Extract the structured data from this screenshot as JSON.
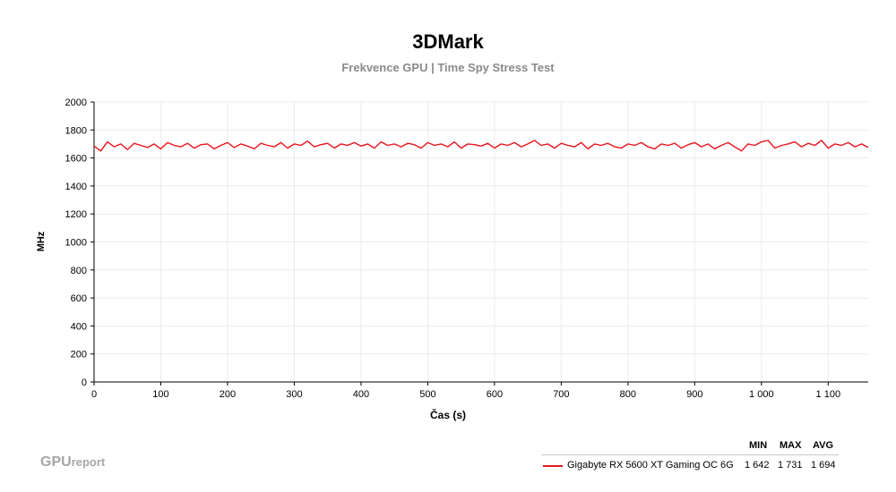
{
  "chart_data": {
    "type": "line",
    "title": "3DMark",
    "subtitle": "Frekvence GPU | Time Spy Stress Test",
    "xlabel": "Čas (s)",
    "ylabel": "MHz",
    "xlim": [
      0,
      1160
    ],
    "ylim": [
      0,
      2000
    ],
    "x_ticks": [
      0,
      100,
      200,
      300,
      400,
      500,
      600,
      700,
      800,
      900,
      1000,
      1100
    ],
    "x_tick_labels": [
      "0",
      "100",
      "200",
      "300",
      "400",
      "500",
      "600",
      "700",
      "800",
      "900",
      "1 000",
      "1 100"
    ],
    "y_ticks": [
      0,
      200,
      400,
      600,
      800,
      1000,
      1200,
      1400,
      1600,
      1800,
      2000
    ],
    "y_tick_labels": [
      "0",
      "200",
      "400",
      "600",
      "800",
      "1000",
      "1200",
      "1400",
      "1600",
      "1800",
      "2000"
    ],
    "grid": true,
    "legend_position": "bottom-right",
    "series": [
      {
        "name": "Gigabyte RX 5600 XT Gaming OC 6G",
        "color": "#e8141c",
        "x": [
          0,
          10,
          20,
          30,
          40,
          50,
          60,
          70,
          80,
          90,
          100,
          110,
          120,
          130,
          140,
          150,
          160,
          170,
          180,
          190,
          200,
          210,
          220,
          230,
          240,
          250,
          260,
          270,
          280,
          290,
          300,
          310,
          320,
          330,
          340,
          350,
          360,
          370,
          380,
          390,
          400,
          410,
          420,
          430,
          440,
          450,
          460,
          470,
          480,
          490,
          500,
          510,
          520,
          530,
          540,
          550,
          560,
          570,
          580,
          590,
          600,
          610,
          620,
          630,
          640,
          650,
          660,
          670,
          680,
          690,
          700,
          710,
          720,
          730,
          740,
          750,
          760,
          770,
          780,
          790,
          800,
          810,
          820,
          830,
          840,
          850,
          860,
          870,
          880,
          890,
          900,
          910,
          920,
          930,
          940,
          950,
          960,
          970,
          980,
          990,
          1000,
          1010,
          1020,
          1030,
          1040,
          1050,
          1060,
          1070,
          1080,
          1090,
          1100,
          1110,
          1120,
          1130,
          1140,
          1150,
          1160
        ],
        "values": [
          1685,
          1650,
          1715,
          1680,
          1700,
          1660,
          1705,
          1690,
          1675,
          1700,
          1665,
          1710,
          1690,
          1680,
          1705,
          1670,
          1695,
          1700,
          1665,
          1690,
          1710,
          1675,
          1700,
          1685,
          1665,
          1705,
          1690,
          1680,
          1710,
          1670,
          1700,
          1690,
          1720,
          1680,
          1695,
          1705,
          1670,
          1700,
          1690,
          1710,
          1685,
          1700,
          1670,
          1715,
          1690,
          1700,
          1680,
          1705,
          1695,
          1670,
          1710,
          1690,
          1700,
          1680,
          1715,
          1670,
          1700,
          1695,
          1685,
          1705,
          1670,
          1700,
          1690,
          1710,
          1680,
          1700,
          1725,
          1690,
          1700,
          1670,
          1705,
          1690,
          1680,
          1710,
          1665,
          1700,
          1690,
          1705,
          1680,
          1670,
          1700,
          1690,
          1710,
          1680,
          1665,
          1700,
          1690,
          1705,
          1670,
          1695,
          1710,
          1680,
          1700,
          1665,
          1690,
          1710,
          1680,
          1650,
          1700,
          1690,
          1715,
          1725,
          1670,
          1690,
          1700,
          1715,
          1680,
          1705,
          1690,
          1725,
          1670,
          1700,
          1690,
          1710,
          1680,
          1700,
          1675
        ],
        "min_label": "1 642",
        "max_label": "1 731",
        "avg_label": "1 694"
      }
    ]
  },
  "legend": {
    "col_min": "MIN",
    "col_max": "MAX",
    "col_avg": "AVG"
  },
  "logo": {
    "strong": "GPU",
    "light": "report"
  }
}
